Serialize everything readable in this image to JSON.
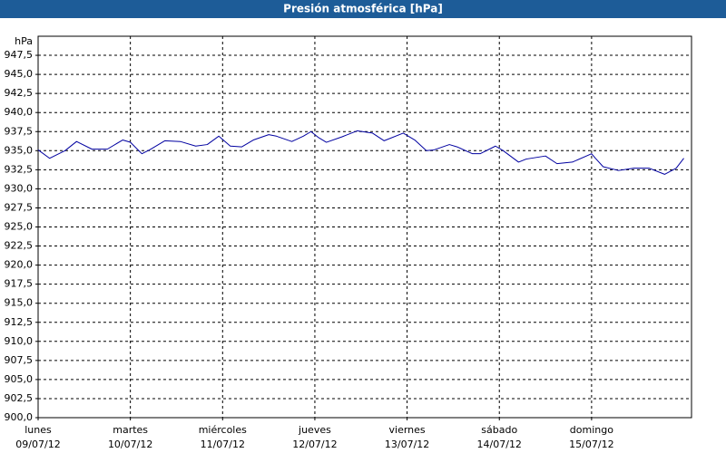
{
  "chart_data": {
    "type": "line",
    "title": "Presión atmosférica [hPa]",
    "y_label": "hPa",
    "xlim": [
      0,
      170
    ],
    "xticks": [
      {
        "value": 0,
        "label": "lunes"
      },
      {
        "value": 24,
        "label": "martes"
      },
      {
        "value": 48,
        "label": "miércoles"
      },
      {
        "value": 72,
        "label": "jueves"
      },
      {
        "value": 96,
        "label": "viernes"
      },
      {
        "value": 120,
        "label": "sábado"
      },
      {
        "value": 144,
        "label": "domingo"
      }
    ],
    "xtick_dates": [
      "09/07/12",
      "10/07/12",
      "11/07/12",
      "12/07/12",
      "13/07/12",
      "14/07/12",
      "15/07/12"
    ],
    "ylim": [
      900,
      950
    ],
    "yticks": [
      {
        "value": 900,
        "label": "900,0"
      },
      {
        "value": 902.5,
        "label": "902,5"
      },
      {
        "value": 905,
        "label": "905,0"
      },
      {
        "value": 907.5,
        "label": "907,5"
      },
      {
        "value": 910,
        "label": "910,0"
      },
      {
        "value": 912.5,
        "label": "912,5"
      },
      {
        "value": 915,
        "label": "915,0"
      },
      {
        "value": 917.5,
        "label": "917,5"
      },
      {
        "value": 920,
        "label": "920,0"
      },
      {
        "value": 922.5,
        "label": "922,5"
      },
      {
        "value": 925,
        "label": "925,0"
      },
      {
        "value": 927.5,
        "label": "927,5"
      },
      {
        "value": 930,
        "label": "930,0"
      },
      {
        "value": 932.5,
        "label": "932,5"
      },
      {
        "value": 935,
        "label": "935,0"
      },
      {
        "value": 937.5,
        "label": "937,5"
      },
      {
        "value": 940,
        "label": "940,0"
      },
      {
        "value": 942.5,
        "label": "942,5"
      },
      {
        "value": 945,
        "label": "945,0"
      },
      {
        "value": 947.5,
        "label": "947,5"
      }
    ],
    "grid": true,
    "color": "#0000a0",
    "x": [
      0,
      3,
      7,
      10,
      14,
      18,
      22,
      24,
      27,
      29,
      33,
      37,
      41,
      44,
      47,
      50,
      53,
      56,
      60,
      62,
      66,
      69,
      71,
      73,
      75,
      79,
      83,
      87,
      90,
      95,
      98,
      101,
      103,
      107,
      109,
      113,
      115,
      119,
      121,
      125,
      127,
      132,
      135,
      139,
      144,
      145,
      147,
      151,
      155,
      159,
      163,
      166,
      168
    ],
    "values": [
      935.1,
      934.0,
      935.0,
      936.2,
      935.2,
      935.2,
      936.4,
      936.1,
      934.6,
      935.1,
      936.3,
      936.2,
      935.6,
      935.8,
      936.9,
      935.6,
      935.5,
      936.4,
      937.1,
      936.9,
      936.2,
      936.9,
      937.5,
      936.7,
      936.1,
      936.8,
      937.6,
      937.3,
      936.3,
      937.3,
      936.4,
      935.0,
      935.1,
      935.8,
      935.5,
      934.6,
      934.6,
      935.6,
      935.0,
      933.5,
      933.9,
      934.3,
      933.3,
      933.5,
      934.6,
      934.0,
      932.9,
      932.4,
      932.7,
      932.7,
      931.9,
      932.7,
      934.0
    ]
  }
}
